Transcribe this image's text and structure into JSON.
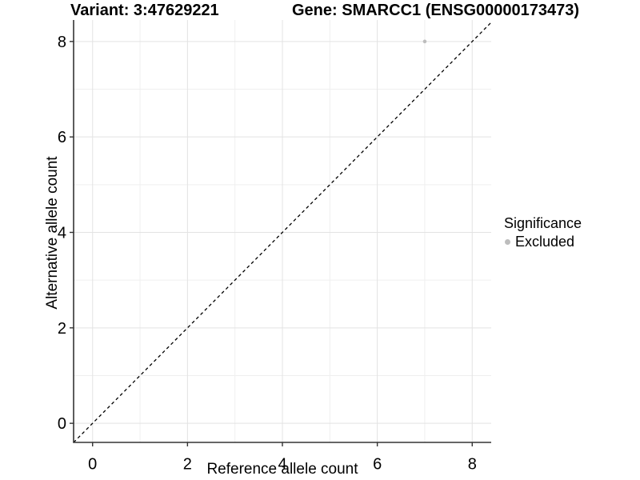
{
  "header": {
    "variant_title": "Variant: 3:47629221",
    "gene_title": "Gene: SMARCC1 (ENSG00000173473)"
  },
  "chart_data": {
    "type": "scatter",
    "xlabel": "Reference allele count",
    "ylabel": "Alternative allele count",
    "x_ticks": [
      0,
      2,
      4,
      6,
      8
    ],
    "y_ticks": [
      0,
      2,
      4,
      6,
      8
    ],
    "x_minor": [
      1,
      3,
      5,
      7
    ],
    "y_minor": [
      1,
      3,
      5,
      7
    ],
    "xlim": [
      -0.4,
      8.4
    ],
    "ylim": [
      -0.4,
      8.45
    ],
    "grid": "on",
    "points": [
      {
        "x": 7,
        "y": 8,
        "significance": "Excluded"
      }
    ],
    "identity_line": {
      "style": "dashed",
      "from": [
        -0.4,
        -0.4
      ],
      "to": [
        8.45,
        8.45
      ]
    },
    "legend": {
      "title": "Significance",
      "position": "right",
      "items": [
        {
          "label": "Excluded",
          "color": "#bdbdbd"
        }
      ]
    }
  },
  "colors": {
    "background": "#ffffff",
    "grid_major": "#e3e3e3",
    "grid_minor": "#efefef",
    "axis_line": "#333333",
    "tick_text": "#000000",
    "identity_line": "#000000",
    "point_excluded": "#bdbdbd"
  }
}
